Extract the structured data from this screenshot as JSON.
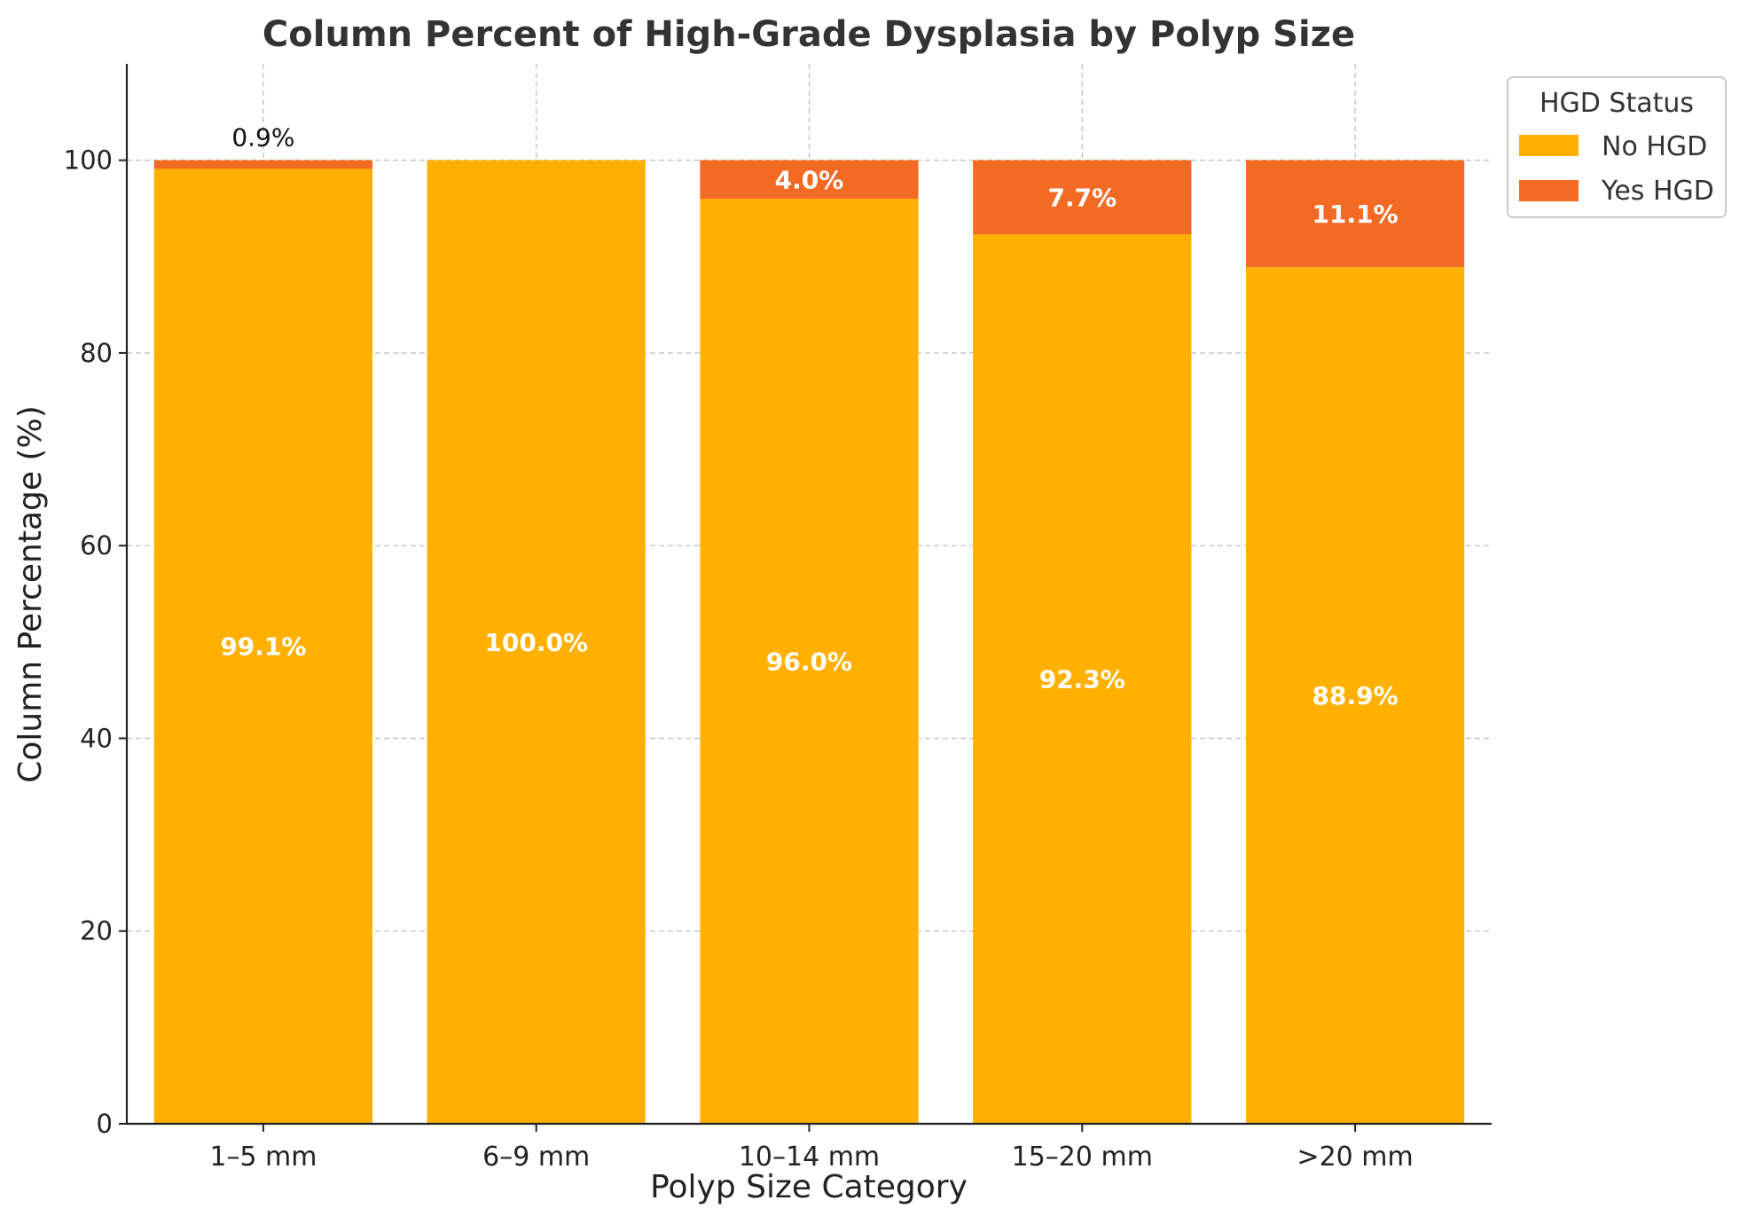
{
  "chart_data": {
    "type": "bar",
    "stacked": true,
    "title": "Column Percent of High-Grade Dysplasia by Polyp Size",
    "xlabel": "Polyp Size Category",
    "ylabel": "Column Percentage (%)",
    "ylim": [
      0,
      110
    ],
    "yticks": [
      0,
      20,
      40,
      60,
      80,
      100
    ],
    "grid": true,
    "categories": [
      "1–5 mm",
      "6–9 mm",
      "10–14 mm",
      "15–20 mm",
      ">20 mm"
    ],
    "series": [
      {
        "name": "No HGD",
        "color": "#FFB000",
        "values": [
          99.1,
          100.0,
          96.0,
          92.3,
          88.9
        ],
        "labels": [
          "99.1%",
          "100.0%",
          "96.0%",
          "92.3%",
          "88.9%"
        ]
      },
      {
        "name": "Yes HGD",
        "color": "#F26A24",
        "values": [
          0.9,
          0.0,
          4.0,
          7.7,
          11.1
        ],
        "labels": [
          "0.9%",
          "",
          "4.0%",
          "7.7%",
          "11.1%"
        ]
      }
    ],
    "legend": {
      "title": "HGD Status",
      "placement": "outside-top-right"
    }
  }
}
